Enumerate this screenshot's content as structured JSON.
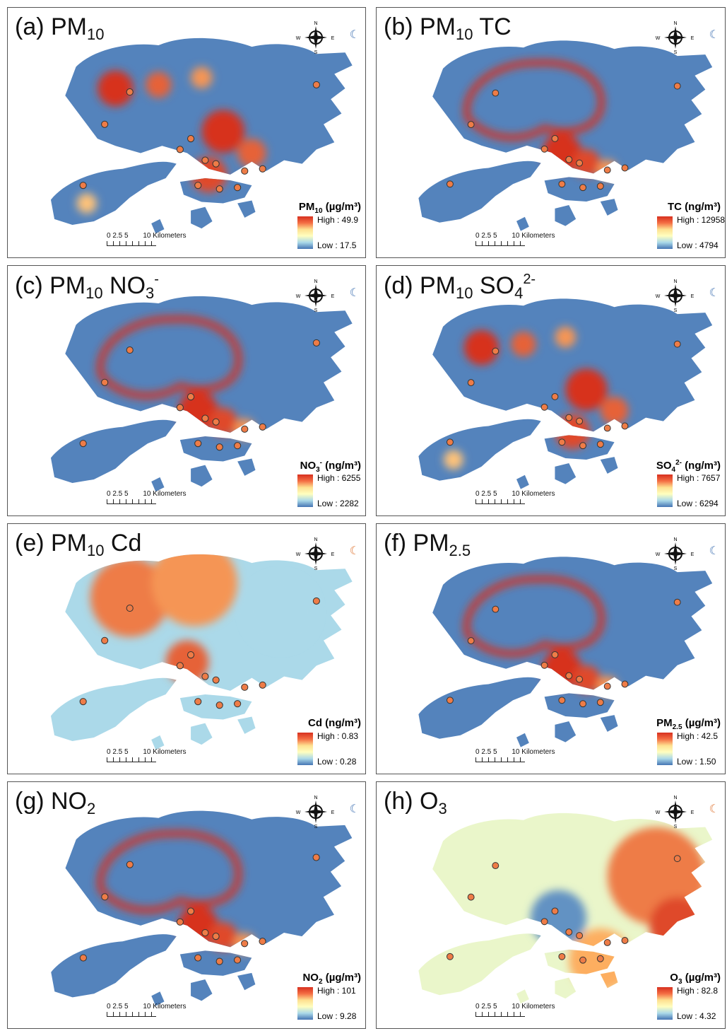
{
  "compass": {
    "n": "N",
    "s": "S",
    "e": "E",
    "w": "W"
  },
  "scale": {
    "ticks": "0 2.5 5",
    "label": "10 Kilometers"
  },
  "colors": {
    "high": "#d7301f",
    "mid": "#ffffbf",
    "low": "#4575b4"
  },
  "panels": [
    {
      "id": "a",
      "title_main": "(a) PM",
      "title_sub": "10",
      "title_rest": "",
      "title_sup": "",
      "legend_main": "PM",
      "legend_sub": "10",
      "legend_sup": "",
      "legend_unit": " (µg/m³)",
      "high": "High : 49.9",
      "low": "Low : 17.5",
      "theme": "spotty"
    },
    {
      "id": "b",
      "title_main": "(b) PM",
      "title_sub": "10",
      "title_rest": " TC",
      "title_sup": "",
      "legend_main": "TC",
      "legend_sub": "",
      "legend_sup": "",
      "legend_unit": " (ng/m³)",
      "high": "High : 12958",
      "low": "Low : 4794",
      "theme": "ring"
    },
    {
      "id": "c",
      "title_main": "(c) PM",
      "title_sub": "10",
      "title_rest": " NO",
      "title_sub2": "3",
      "title_sup": "-",
      "legend_main": "NO",
      "legend_sub": "3",
      "legend_sup": "-",
      "legend_unit": " (ng/m³)",
      "high": "High : 6255",
      "low": "Low : 2282",
      "theme": "ring"
    },
    {
      "id": "d",
      "title_main": "(d) PM",
      "title_sub": "10",
      "title_rest": " SO",
      "title_sub2": "4",
      "title_sup": "2-",
      "legend_main": "SO",
      "legend_sub": "4",
      "legend_sup": "2-",
      "legend_unit": " (ng/m³)",
      "high": "High : 7657",
      "low": "Low : 6294",
      "theme": "spotty"
    },
    {
      "id": "e",
      "title_main": "(e) PM",
      "title_sub": "10",
      "title_rest": " Cd",
      "title_sup": "",
      "legend_main": "Cd",
      "legend_sub": "",
      "legend_sup": "",
      "legend_unit": " (ng/m³)",
      "high": "High : 0.83",
      "low": "Low : 0.28",
      "theme": "warmnorth"
    },
    {
      "id": "f",
      "title_main": "(f) PM",
      "title_sub": "2.5",
      "title_rest": "",
      "title_sup": "",
      "legend_main": "PM",
      "legend_sub": "2.5",
      "legend_sup": "",
      "legend_unit": " (µg/m³)",
      "high": "High : 42.5",
      "low": "Low : 1.50",
      "theme": "ring"
    },
    {
      "id": "g",
      "title_main": "(g) NO",
      "title_sub": "2",
      "title_rest": "",
      "title_sup": "",
      "legend_main": "NO",
      "legend_sub": "2",
      "legend_sup": "",
      "legend_unit": " (µg/m³)",
      "high": "High : 101",
      "low": "Low : 9.28",
      "theme": "ring"
    },
    {
      "id": "h",
      "title_main": "(h) O",
      "title_sub": "3",
      "title_rest": "",
      "title_sup": "",
      "legend_main": "O",
      "legend_sub": "3",
      "legend_sup": "",
      "legend_unit": " (µg/m³)",
      "high": "High : 82.8",
      "low": "Low : 4.32",
      "theme": "warmeast"
    }
  ]
}
